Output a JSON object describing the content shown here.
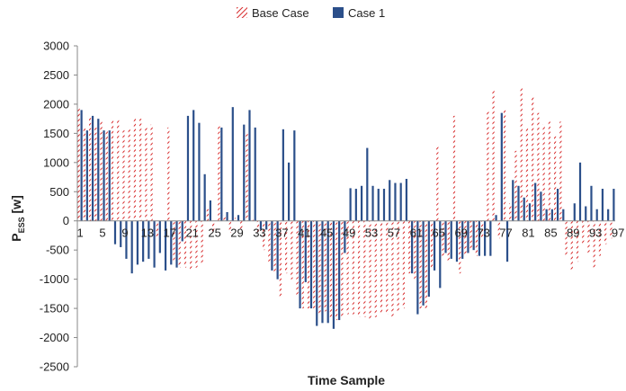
{
  "chart_data": {
    "type": "bar",
    "title": "",
    "xlabel": "Time Sample",
    "ylabel": "P",
    "ylabel_sub": "ESS",
    "ylabel_unit": " [w]",
    "ylim": [
      -2500,
      3000
    ],
    "y_ticks": [
      "3000",
      "2500",
      "2000",
      "1500",
      "1000",
      "500",
      "0",
      "-500",
      "-1000",
      "-1500",
      "-2000",
      "-2500"
    ],
    "y_tick_values": [
      3000,
      2500,
      2000,
      1500,
      1000,
      500,
      0,
      -500,
      -1000,
      -1500,
      -2000,
      -2500
    ],
    "x_tick_labels": [
      "1",
      "5",
      "9",
      "13",
      "17",
      "21",
      "25",
      "29",
      "33",
      "37",
      "41",
      "45",
      "49",
      "53",
      "57",
      "61",
      "65",
      "69",
      "73",
      "77",
      "81",
      "85",
      "89",
      "93",
      "97"
    ],
    "x": [
      1,
      2,
      3,
      4,
      5,
      6,
      7,
      8,
      9,
      10,
      11,
      12,
      13,
      14,
      15,
      16,
      17,
      18,
      19,
      20,
      21,
      22,
      23,
      24,
      25,
      26,
      27,
      28,
      29,
      30,
      31,
      32,
      33,
      34,
      35,
      36,
      37,
      38,
      39,
      40,
      41,
      42,
      43,
      44,
      45,
      46,
      47,
      48,
      49,
      50,
      51,
      52,
      53,
      54,
      55,
      56,
      57,
      58,
      59,
      60,
      61,
      62,
      63,
      64,
      65,
      66,
      67,
      68,
      69,
      70,
      71,
      72,
      73,
      74,
      75,
      76,
      77,
      78,
      79,
      80,
      81,
      82,
      83,
      84,
      85,
      86,
      87,
      88,
      89,
      90,
      91,
      92,
      93,
      94,
      95,
      96
    ],
    "legend_position": "top-center",
    "grid": false,
    "series": [
      {
        "name": "Base Case",
        "color": "#d62728",
        "pattern": "diagonal-hatch",
        "values": [
          1950,
          1600,
          1800,
          1600,
          1700,
          1550,
          1750,
          1750,
          1550,
          1600,
          1750,
          1750,
          1600,
          1650,
          -300,
          0,
          1600,
          -700,
          -800,
          -800,
          -850,
          -800,
          -750,
          200,
          -200,
          1650,
          100,
          -200,
          50,
          -150,
          1500,
          50,
          -200,
          -500,
          -700,
          -900,
          -1300,
          -900,
          -1000,
          -1300,
          -1500,
          -1500,
          -1500,
          -1600,
          -1550,
          -1650,
          -1700,
          -1650,
          -1600,
          -1600,
          -1650,
          -1650,
          -1700,
          -1650,
          -1600,
          -1600,
          -1650,
          -1550,
          -1500,
          -900,
          -1000,
          -1500,
          -1500,
          -800,
          1300,
          -600,
          -700,
          1800,
          -900,
          -600,
          -500,
          -600,
          -300,
          1900,
          2250,
          -300,
          1900,
          300,
          1200,
          2300,
          1600,
          2150,
          1850,
          1650,
          1700,
          1450,
          1700,
          -600,
          -850,
          -700,
          -400,
          -550,
          -800,
          -600,
          -400,
          -300
        ]
      },
      {
        "name": "Case 1",
        "color": "#2b4f8a",
        "pattern": "solid",
        "values": [
          1900,
          1550,
          1800,
          1750,
          1550,
          1550,
          -400,
          -450,
          -650,
          -900,
          -750,
          -700,
          -650,
          -800,
          -550,
          -850,
          -750,
          -800,
          -350,
          1800,
          1900,
          1680,
          800,
          350,
          0,
          1600,
          150,
          1950,
          100,
          1650,
          1900,
          1600,
          -150,
          -150,
          -850,
          -1000,
          1570,
          1000,
          1550,
          -1500,
          -1050,
          -1500,
          -1800,
          -1750,
          -1750,
          -1850,
          -1700,
          -550,
          560,
          550,
          600,
          1250,
          600,
          550,
          550,
          700,
          650,
          650,
          720,
          -900,
          -1600,
          -1450,
          -1300,
          -850,
          -1150,
          -550,
          -650,
          -700,
          -650,
          -550,
          -500,
          -600,
          -600,
          -600,
          100,
          1850,
          -700,
          700,
          600,
          400,
          300,
          650,
          500,
          200,
          200,
          550,
          200,
          0,
          300,
          1000,
          250,
          600,
          200,
          550,
          200,
          550
        ]
      }
    ]
  }
}
